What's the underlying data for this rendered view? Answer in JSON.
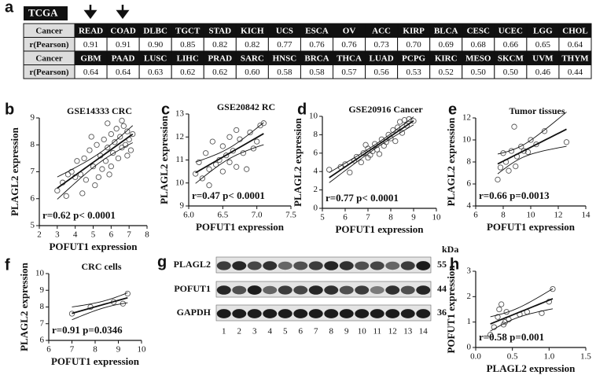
{
  "table": {
    "panel": "a",
    "label": "TCGA",
    "rows": [
      [
        "Cancer",
        "READ",
        "COAD",
        "DLBC",
        "TGCT",
        "STAD",
        "KICH",
        "UCS",
        "ESCA",
        "OV",
        "ACC",
        "KIRP",
        "BLCA",
        "CESC",
        "UCEC",
        "LGG",
        "CHOL"
      ],
      [
        "r(Pearson)",
        "0.91",
        "0.91",
        "0.90",
        "0.85",
        "0.82",
        "0.82",
        "0.77",
        "0.76",
        "0.76",
        "0.73",
        "0.70",
        "0.69",
        "0.68",
        "0.66",
        "0.65",
        "0.64"
      ],
      [
        "Cancer",
        "GBM",
        "PAAD",
        "LUSC",
        "LIHC",
        "PRAD",
        "SARC",
        "HNSC",
        "BRCA",
        "THCA",
        "LUAD",
        "PCPG",
        "KIRC",
        "MESO",
        "SKCM",
        "UVM",
        "THYM"
      ],
      [
        "r(Pearson)",
        "0.64",
        "0.64",
        "0.63",
        "0.62",
        "0.62",
        "0.60",
        "0.58",
        "0.58",
        "0.57",
        "0.56",
        "0.53",
        "0.52",
        "0.50",
        "0.50",
        "0.46",
        "0.44"
      ]
    ]
  },
  "chart_data": [
    {
      "type": "scatter",
      "panel": "b",
      "title": "GSE14333   CRC",
      "annotation": "r=0.62  p< 0.0001",
      "xlabel": "POFUT1 expression",
      "ylabel": "PLAGL2 expression",
      "x": [
        3.0,
        3.3,
        3.5,
        3.8,
        4.0,
        4.1,
        4.3,
        4.5,
        4.6,
        4.8,
        5.0,
        5.1,
        5.2,
        5.4,
        5.5,
        5.6,
        5.7,
        5.8,
        5.9,
        6.0,
        6.1,
        6.2,
        6.3,
        6.4,
        6.5,
        6.6,
        6.7,
        6.8,
        6.9,
        7.0,
        7.1,
        7.2,
        4.4,
        5.3,
        6.0,
        6.6,
        3.6,
        4.9,
        5.8,
        6.9
      ],
      "values": [
        6.3,
        6.6,
        6.1,
        7.0,
        6.8,
        7.4,
        6.9,
        7.5,
        6.7,
        7.8,
        7.2,
        6.5,
        8.0,
        7.6,
        7.1,
        8.2,
        7.4,
        7.9,
        6.9,
        8.4,
        7.7,
        8.1,
        8.6,
        7.5,
        8.3,
        7.9,
        8.7,
        8.0,
        8.5,
        8.2,
        7.8,
        8.4,
        6.2,
        6.8,
        7.2,
        8.9,
        6.9,
        8.3,
        8.8,
        7.6
      ],
      "xlim": [
        2,
        8
      ],
      "ylim": [
        5,
        9
      ],
      "xticks": [
        2,
        3,
        4,
        5,
        6,
        7,
        8
      ],
      "yticks": [
        5,
        6,
        7,
        8,
        9
      ]
    },
    {
      "type": "scatter",
      "panel": "c",
      "title": "GSE20842      RC",
      "annotation": "r=0.47  p< 0.0001",
      "xlabel": "POFUT1 expression",
      "ylabel": "PLAGL2 expression",
      "x": [
        6.1,
        6.15,
        6.2,
        6.25,
        6.3,
        6.35,
        6.4,
        6.45,
        6.5,
        6.5,
        6.55,
        6.6,
        6.6,
        6.65,
        6.7,
        6.75,
        6.8,
        6.85,
        6.9,
        6.95,
        7.0,
        7.05,
        6.3,
        6.7,
        7.1
      ],
      "values": [
        10.4,
        10.9,
        10.2,
        11.3,
        10.6,
        11.8,
        10.8,
        11.0,
        10.5,
        11.6,
        11.2,
        10.9,
        12.0,
        11.4,
        10.7,
        11.9,
        11.3,
        10.6,
        12.2,
        11.5,
        11.8,
        12.5,
        9.9,
        12.3,
        12.6
      ],
      "xlim": [
        6,
        7.5
      ],
      "ylim": [
        9,
        13
      ],
      "xticks": [
        {
          "value": 6,
          "label": "6.0"
        },
        6.5,
        {
          "value": 7,
          "label": "7.0"
        },
        7.5
      ],
      "yticks": [
        9,
        10,
        11,
        12,
        13
      ]
    },
    {
      "type": "scatter",
      "panel": "d",
      "title": "GSE20916   Cancer",
      "annotation": "r=0.77  p< 0.0001",
      "xlabel": "POFUT1 expression",
      "ylabel": "PLAGL2 expression",
      "x": [
        5.3,
        5.8,
        6.0,
        6.2,
        6.4,
        6.5,
        6.7,
        6.8,
        7.0,
        7.0,
        7.1,
        7.2,
        7.3,
        7.4,
        7.5,
        7.6,
        7.7,
        7.8,
        7.9,
        8.0,
        8.1,
        8.2,
        8.3,
        8.4,
        8.5,
        8.6,
        8.7,
        8.8,
        9.0,
        6.9
      ],
      "values": [
        4.2,
        4.5,
        4.8,
        3.9,
        5.2,
        5.6,
        5.0,
        6.0,
        5.5,
        6.5,
        5.8,
        6.2,
        7.0,
        6.4,
        5.9,
        7.5,
        6.8,
        7.2,
        8.0,
        7.6,
        8.5,
        7.3,
        8.8,
        9.4,
        8.2,
        9.6,
        9.0,
        9.7,
        9.5,
        6.9
      ],
      "xlim": [
        5,
        10
      ],
      "ylim": [
        0,
        10
      ],
      "xticks": [
        5,
        6,
        7,
        8,
        9,
        10
      ],
      "yticks": [
        0,
        2,
        4,
        6,
        8,
        10
      ]
    },
    {
      "type": "scatter",
      "panel": "e",
      "title": "Tumor tissues",
      "annotation": "r=0.66   p=0.0013",
      "xlabel": "POFUT1 expression",
      "ylabel": "PLAGL2 expression",
      "x": [
        7.6,
        7.8,
        8.0,
        8.2,
        8.4,
        8.6,
        8.8,
        8.9,
        9.0,
        9.3,
        9.5,
        9.8,
        10.0,
        10.4,
        11.0,
        12.6
      ],
      "values": [
        6.4,
        7.5,
        8.8,
        8.0,
        7.2,
        9.0,
        11.2,
        7.6,
        8.5,
        9.4,
        9.0,
        8.9,
        10.0,
        9.6,
        10.8,
        9.8
      ],
      "xlim": [
        6,
        14
      ],
      "ylim": [
        4,
        12
      ],
      "xticks": [
        6,
        8,
        10,
        12,
        14
      ],
      "yticks": [
        4,
        6,
        8,
        10,
        12
      ]
    },
    {
      "type": "scatter",
      "panel": "f",
      "title": "CRC cells",
      "annotation": "r=0.91   p=0.0346",
      "xlabel": "POFUT1 expression",
      "ylabel": "PLAGL2 expression",
      "x": [
        7.0,
        7.8,
        8.8,
        9.2,
        9.4
      ],
      "values": [
        7.6,
        8.0,
        8.3,
        8.2,
        8.8
      ],
      "xlim": [
        6,
        10
      ],
      "ylim": [
        6,
        10
      ],
      "xticks": [
        6,
        7,
        8,
        9,
        10
      ],
      "yticks": [
        6,
        7,
        8,
        9,
        10
      ]
    },
    {
      "type": "scatter",
      "panel": "h",
      "annotation": "r=0.58   p=0.001",
      "xlabel": "PLAGL2 expression",
      "ylabel": "POFUT1 expression",
      "x": [
        0.2,
        0.25,
        0.3,
        0.32,
        0.35,
        0.4,
        0.42,
        0.45,
        0.6,
        0.7,
        0.9,
        1.0,
        1.05,
        0.38
      ],
      "values": [
        0.5,
        0.8,
        1.2,
        1.5,
        1.7,
        1.0,
        1.4,
        1.1,
        1.3,
        1.4,
        1.35,
        1.8,
        2.3,
        0.9
      ],
      "xlim": [
        0,
        1.5
      ],
      "ylim": [
        0,
        3
      ],
      "xticks": [
        {
          "value": 0,
          "label": "0.0"
        },
        0.5,
        {
          "value": 1,
          "label": "1.0"
        },
        1.5
      ],
      "yticks": [
        0,
        1,
        2,
        3
      ]
    }
  ],
  "blot": {
    "panel": "g",
    "unit": "kDa",
    "rows": [
      {
        "label": "PLAGL2",
        "kda": "55"
      },
      {
        "label": "POFUT1",
        "kda": "44"
      },
      {
        "label": "GAPDH",
        "kda": "36"
      }
    ],
    "lanes": [
      "1",
      "2",
      "3",
      "4",
      "5",
      "6",
      "7",
      "8",
      "9",
      "10",
      "11",
      "12",
      "13",
      "14"
    ]
  }
}
